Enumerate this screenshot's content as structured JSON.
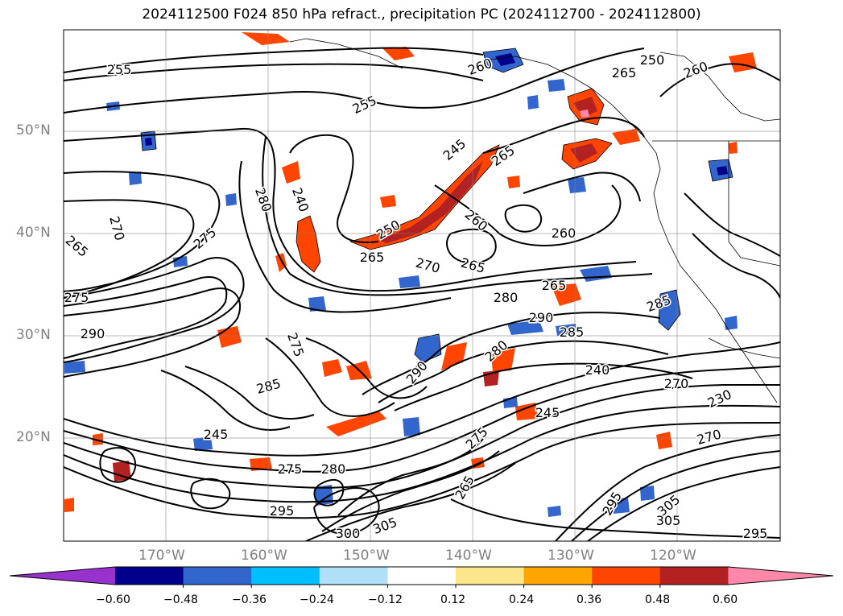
{
  "title": "2024112500 F024 850 hPa refract., precipitation PC (2024112700 - 2024112800)",
  "lat_labels": [
    "50°N",
    "40°N",
    "30°N",
    "20°N"
  ],
  "lon_labels": [
    "170°W",
    "160°W",
    "150°W",
    "140°W",
    "130°W",
    "120°W"
  ],
  "colorbar": {
    "tick_labels": [
      "−0.60",
      "−0.48",
      "−0.36",
      "−0.24",
      "−0.12",
      "0.12",
      "0.24",
      "0.36",
      "0.48",
      "0.60"
    ],
    "colors": [
      "#9932cc",
      "#00008b",
      "#3366cc",
      "#00bfff",
      "#b0e0f8",
      "#ffffff",
      "#fce68c",
      "#ffa500",
      "#ff4500",
      "#b22222",
      "#ff88aa"
    ]
  },
  "contour_labels": [
    "255",
    "255",
    "260",
    "265",
    "250",
    "260",
    "245",
    "265",
    "240",
    "280",
    "270",
    "265",
    "275",
    "250",
    "265",
    "270",
    "265",
    "260",
    "260",
    "265",
    "285",
    "280",
    "290",
    "285",
    "290",
    "275",
    "280",
    "240",
    "290",
    "285",
    "275",
    "270",
    "230",
    "245",
    "275",
    "280",
    "265",
    "295",
    "305",
    "300",
    "305",
    "295",
    "305",
    "295",
    "270",
    "245",
    "275"
  ]
}
